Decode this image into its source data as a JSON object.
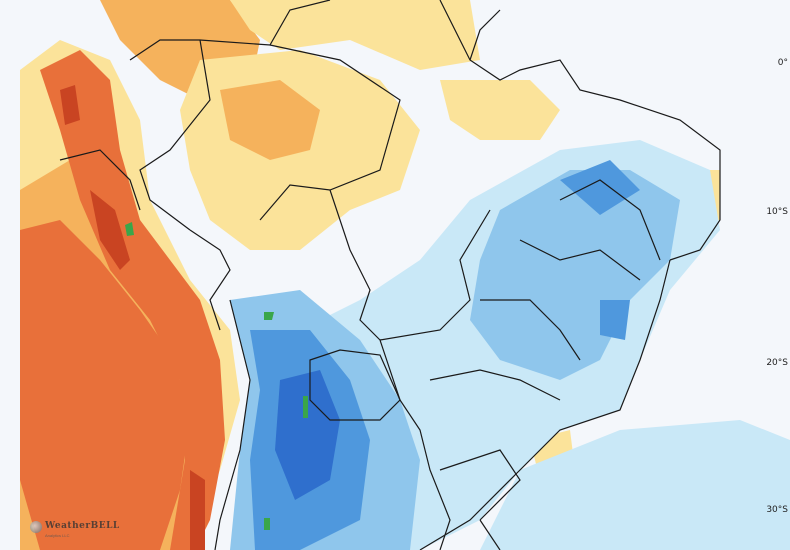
{
  "map": {
    "lat_labels": [
      {
        "text": "0°",
        "key": "lat0"
      },
      {
        "text": "10°S",
        "key": "lat10"
      },
      {
        "text": "20°S",
        "key": "lat20"
      },
      {
        "text": "30°S",
        "key": "lat30"
      }
    ]
  },
  "branding": {
    "logo_text": "WeatherBELL",
    "logo_sub": "Analytics LLC"
  },
  "colors": {
    "ocean_bg": "#f4f7fb",
    "warm_light": "#fbe39a",
    "warm_mid": "#f5b25c",
    "warm_strong": "#e8703a",
    "warm_max": "#c94422",
    "cool_light": "#c9e8f7",
    "cool_mid": "#8fc6ec",
    "cool_strong": "#4f98dd",
    "cool_max": "#2f6fcd",
    "extreme": "#3aa64a",
    "border": "#1a1a1a"
  }
}
